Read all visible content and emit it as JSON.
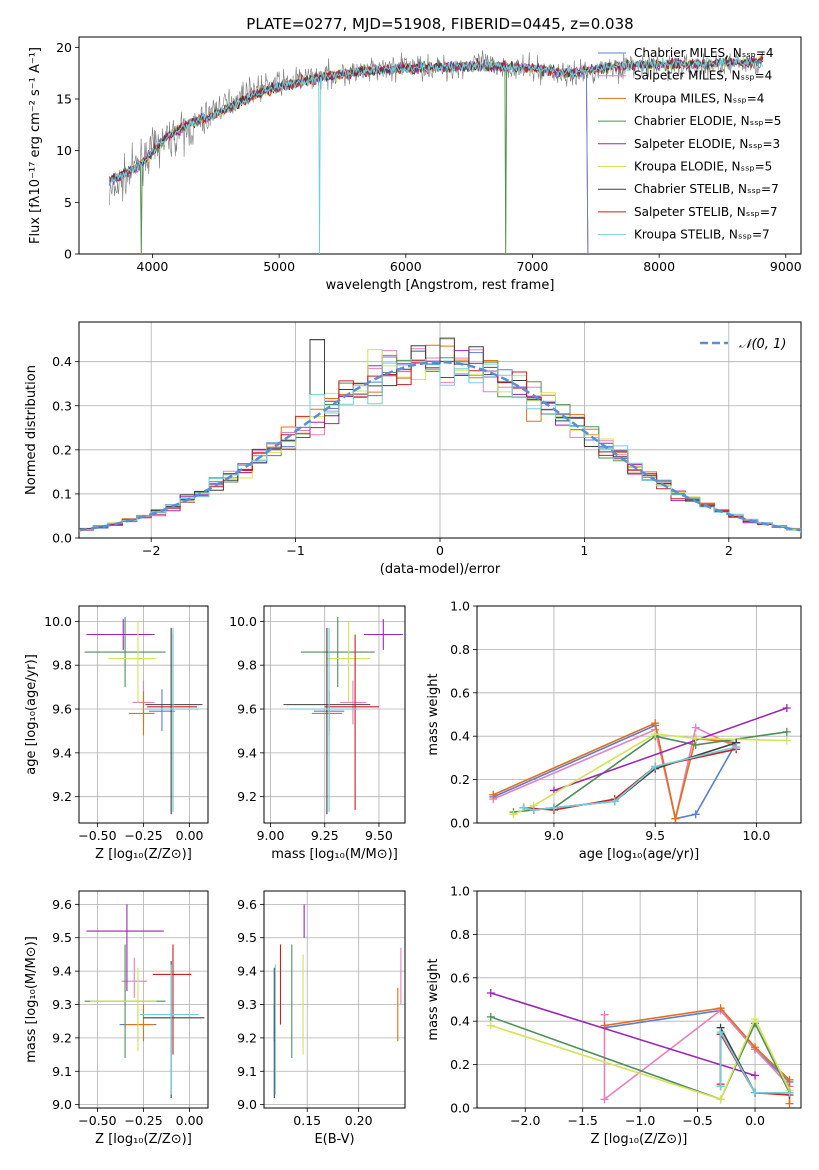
{
  "chart_data": [
    {
      "panel": "spectrum",
      "type": "line",
      "title": "PLATE=0277, MJD=51908, FIBERID=0445, z=0.038",
      "xlabel": "wavelength [Angstrom, rest frame]",
      "ylabel": "Flux [fλ10⁻¹⁷ erg cm⁻² s⁻¹ A⁻¹]",
      "xlim": [
        3420,
        9120
      ],
      "ylim": [
        0,
        21
      ],
      "xticks": [
        4000,
        5000,
        6000,
        7000,
        8000,
        9000
      ],
      "yticks": [
        0,
        5,
        10,
        15,
        20
      ],
      "legend_position": "upper-right",
      "grid": false,
      "legend": [
        {
          "label": "Chabrier MILES, Nₛₛₚ=4",
          "color": "#5b7fd4"
        },
        {
          "label": "Salpeter MILES, Nₛₛₚ=4",
          "color": "#e87fbf"
        },
        {
          "label": "Kroupa MILES, Nₛₛₚ=4",
          "color": "#e0701a"
        },
        {
          "label": "Chabrier ELODIE, Nₛₛₚ=5",
          "color": "#4f8f5a"
        },
        {
          "label": "Salpeter ELODIE, Nₛₛₚ=3",
          "color": "#9b26b6"
        },
        {
          "label": "Kroupa ELODIE, Nₛₛₚ=5",
          "color": "#d4e35a"
        },
        {
          "label": "Chabrier STELIB, Nₛₛₚ=7",
          "color": "#404040"
        },
        {
          "label": "Salpeter STELIB, Nₛₛₚ=7",
          "color": "#cc1f1f"
        },
        {
          "label": "Kroupa STELIB, Nₛₛₚ=7",
          "color": "#6fd0dd"
        }
      ],
      "continuum": {
        "x": [
          3650,
          3900,
          4100,
          4300,
          4500,
          4800,
          5000,
          5300,
          5600,
          6000,
          6300,
          6600,
          7000,
          7300,
          7450,
          7600,
          7800,
          8200,
          8600,
          8800
        ],
        "y": [
          7.0,
          8.6,
          11.2,
          12.7,
          13.5,
          15.4,
          16.2,
          17.0,
          17.6,
          18.0,
          18.1,
          18.2,
          18.0,
          17.5,
          17.8,
          18.1,
          18.3,
          18.4,
          18.5,
          18.7
        ]
      },
      "observed_spectrum": {
        "x": [
          3650,
          3900,
          4100,
          4300,
          4500,
          4800,
          5000,
          5300,
          5600,
          6000,
          6300,
          6600,
          7000,
          7300,
          7450,
          7600,
          7800,
          8200,
          8600,
          8800
        ],
        "y": [
          5.5,
          9.0,
          11.0,
          12.0,
          14.0,
          16.0,
          16.5,
          17.2,
          17.5,
          18.2,
          18.0,
          18.4,
          17.8,
          17.3,
          17.7,
          18.0,
          18.2,
          18.1,
          18.4,
          18.5
        ]
      }
    },
    {
      "panel": "residuals",
      "type": "histogram",
      "xlabel": "(data-model)/error",
      "ylabel": "Normed distribution",
      "xlim": [
        -2.5,
        2.5
      ],
      "ylim": [
        0,
        0.49
      ],
      "xticks": [
        -2,
        -1,
        0,
        1,
        2
      ],
      "yticks": [
        0.0,
        0.1,
        0.2,
        0.3,
        0.4
      ],
      "grid": true,
      "legend_position": "upper-right",
      "normal_curve_label": "𝒩(0, 1)",
      "normal_curve_color": "#5b8fd4"
    },
    {
      "panel": "age-vs-Z",
      "type": "scatter",
      "xlabel": "Z [log₁₀(Z/Z⊙)]",
      "ylabel": "age  [log₁₀(age/yr)]",
      "xlim": [
        -0.6,
        0.1
      ],
      "ylim": [
        9.08,
        10.07
      ],
      "xticks": [
        -0.5,
        -0.25,
        0.0
      ],
      "xtick_labels": [
        "−0.50",
        "−0.25",
        "0.00"
      ],
      "yticks": [
        9.2,
        9.4,
        9.6,
        9.8,
        10.0
      ],
      "grid": true,
      "points": [
        {
          "series": "Chabrier MILES",
          "x": -0.15,
          "y": 9.59,
          "xerr": [
            0.07,
            0.07
          ],
          "yerr": [
            0.09,
            0.1
          ]
        },
        {
          "series": "Salpeter MILES",
          "x": -0.25,
          "y": 9.63,
          "xerr": [
            0.06,
            0.06
          ],
          "yerr": [
            0.1,
            0.1
          ]
        },
        {
          "series": "Kroupa MILES",
          "x": -0.25,
          "y": 9.58,
          "xerr": [
            0.08,
            0.06
          ],
          "yerr": [
            0.1,
            0.1
          ]
        },
        {
          "series": "Chabrier ELODIE",
          "x": -0.35,
          "y": 9.86,
          "xerr": [
            0.22,
            0.22
          ],
          "yerr": [
            0.16,
            0.16
          ]
        },
        {
          "series": "Salpeter ELODIE",
          "x": -0.36,
          "y": 9.94,
          "xerr": [
            0.2,
            0.17
          ],
          "yerr": [
            0.07,
            0.07
          ]
        },
        {
          "series": "Kroupa ELODIE",
          "x": -0.28,
          "y": 9.83,
          "xerr": [
            0.16,
            0.1
          ],
          "yerr": [
            0.2,
            0.17
          ]
        },
        {
          "series": "Chabrier STELIB",
          "x": -0.1,
          "y": 9.62,
          "xerr": [
            0.14,
            0.17
          ],
          "yerr": [
            0.5,
            0.35
          ]
        },
        {
          "series": "Salpeter STELIB",
          "x": -0.09,
          "y": 9.61,
          "xerr": [
            0.14,
            0.13
          ],
          "yerr": [
            0.47,
            0.33
          ]
        },
        {
          "series": "Kroupa STELIB",
          "x": -0.09,
          "y": 9.6,
          "xerr": [
            0.15,
            0.14
          ],
          "yerr": [
            0.47,
            0.37
          ]
        }
      ]
    },
    {
      "panel": "age-vs-mass",
      "type": "scatter",
      "xlabel": "mass [log₁₀(M/M⊙)]",
      "xlim": [
        8.97,
        9.62
      ],
      "ylim": [
        9.08,
        10.07
      ],
      "xticks": [
        9.0,
        9.25,
        9.5
      ],
      "xtick_labels": [
        "9.00",
        "9.25",
        "9.50"
      ],
      "yticks": [
        9.2,
        9.4,
        9.6,
        9.8,
        10.0
      ],
      "grid": true,
      "points": [
        {
          "series": "Chabrier MILES",
          "x": 9.27,
          "y": 9.59,
          "xerr": [
            0.07,
            0.07
          ],
          "yerr": [
            0.09,
            0.1
          ]
        },
        {
          "series": "Salpeter MILES",
          "x": 9.38,
          "y": 9.63,
          "xerr": [
            0.06,
            0.06
          ],
          "yerr": [
            0.1,
            0.1
          ]
        },
        {
          "series": "Kroupa MILES",
          "x": 9.27,
          "y": 9.58,
          "xerr": [
            0.08,
            0.06
          ],
          "yerr": [
            0.1,
            0.1
          ]
        },
        {
          "series": "Chabrier ELODIE",
          "x": 9.31,
          "y": 9.86,
          "xerr": [
            0.17,
            0.17
          ],
          "yerr": [
            0.16,
            0.16
          ]
        },
        {
          "series": "Salpeter ELODIE",
          "x": 9.52,
          "y": 9.94,
          "xerr": [
            0.09,
            0.09
          ],
          "yerr": [
            0.07,
            0.07
          ]
        },
        {
          "series": "Kroupa ELODIE",
          "x": 9.36,
          "y": 9.83,
          "xerr": [
            0.1,
            0.1
          ],
          "yerr": [
            0.2,
            0.17
          ]
        },
        {
          "series": "Chabrier STELIB",
          "x": 9.26,
          "y": 9.62,
          "xerr": [
            0.2,
            0.2
          ],
          "yerr": [
            0.5,
            0.35
          ]
        },
        {
          "series": "Salpeter STELIB",
          "x": 9.39,
          "y": 9.61,
          "xerr": [
            0.14,
            0.11
          ],
          "yerr": [
            0.47,
            0.33
          ]
        },
        {
          "series": "Kroupa STELIB",
          "x": 9.27,
          "y": 9.6,
          "xerr": [
            0.18,
            0.14
          ],
          "yerr": [
            0.47,
            0.37
          ]
        }
      ]
    },
    {
      "panel": "weight-vs-age",
      "type": "line",
      "xlabel": "age  [log₁₀(age/yr)]",
      "ylabel": "mass weight",
      "xlim": [
        8.62,
        10.22
      ],
      "ylim": [
        0,
        1.0
      ],
      "xticks": [
        9.0,
        9.5,
        10.0
      ],
      "yticks": [
        0.0,
        0.2,
        0.4,
        0.6,
        0.8,
        1.0
      ],
      "grid": true,
      "series": [
        {
          "name": "Chabrier MILES",
          "x": [
            8.7,
            9.5,
            9.6,
            9.7,
            9.9
          ],
          "y": [
            0.12,
            0.45,
            0.02,
            0.04,
            0.37
          ]
        },
        {
          "name": "Salpeter MILES",
          "x": [
            8.7,
            9.5,
            9.6,
            9.7,
            9.9
          ],
          "y": [
            0.11,
            0.43,
            0.02,
            0.44,
            0.35
          ]
        },
        {
          "name": "Kroupa MILES",
          "x": [
            8.7,
            9.5,
            9.6,
            9.7,
            9.9
          ],
          "y": [
            0.13,
            0.46,
            0.02,
            0.39,
            0.37
          ]
        },
        {
          "name": "Chabrier ELODIE",
          "x": [
            8.8,
            9.0,
            9.5,
            9.7,
            10.15
          ],
          "y": [
            0.05,
            0.07,
            0.4,
            0.36,
            0.42
          ]
        },
        {
          "name": "Salpeter ELODIE",
          "x": [
            9.0,
            10.15
          ],
          "y": [
            0.15,
            0.53
          ]
        },
        {
          "name": "Kroupa ELODIE",
          "x": [
            8.8,
            8.9,
            9.5,
            9.7,
            10.15
          ],
          "y": [
            0.04,
            0.08,
            0.41,
            0.39,
            0.38
          ]
        },
        {
          "name": "Chabrier STELIB",
          "x": [
            8.85,
            8.9,
            9.0,
            9.3,
            9.5,
            9.9
          ],
          "y": [
            0.07,
            0.06,
            0.07,
            0.1,
            0.25,
            0.37
          ]
        },
        {
          "name": "Salpeter STELIB",
          "x": [
            8.85,
            9.0,
            9.3,
            9.5,
            9.9
          ],
          "y": [
            0.07,
            0.06,
            0.11,
            0.26,
            0.34
          ]
        },
        {
          "name": "Kroupa STELIB",
          "x": [
            8.85,
            8.9,
            9.0,
            9.3,
            9.5,
            9.9
          ],
          "y": [
            0.07,
            0.06,
            0.07,
            0.1,
            0.26,
            0.35
          ]
        }
      ]
    },
    {
      "panel": "mass-vs-Z",
      "type": "scatter",
      "xlabel": "Z [log₁₀(Z/Z⊙)]",
      "ylabel": "mass [log₁₀(M/M⊙)]",
      "xlim": [
        -0.6,
        0.1
      ],
      "ylim": [
        8.99,
        9.64
      ],
      "xticks": [
        -0.5,
        -0.25,
        0.0
      ],
      "xtick_labels": [
        "−0.50",
        "−0.25",
        "0.00"
      ],
      "yticks": [
        9.0,
        9.1,
        9.2,
        9.3,
        9.4,
        9.5,
        9.6
      ],
      "grid": true,
      "points": [
        {
          "series": "Chabrier MILES",
          "x": -0.28,
          "y": 9.24,
          "xerr": [
            0.1,
            0.1
          ],
          "yerr": [
            0.05,
            0.06
          ]
        },
        {
          "series": "Salpeter MILES",
          "x": -0.3,
          "y": 9.37,
          "xerr": [
            0.07,
            0.07
          ],
          "yerr": [
            0.05,
            0.07
          ]
        },
        {
          "series": "Kroupa MILES",
          "x": -0.25,
          "y": 9.24,
          "xerr": [
            0.1,
            0.06
          ],
          "yerr": [
            0.05,
            0.06
          ]
        },
        {
          "series": "Chabrier ELODIE",
          "x": -0.35,
          "y": 9.31,
          "xerr": [
            0.22,
            0.22
          ],
          "yerr": [
            0.17,
            0.17
          ]
        },
        {
          "series": "Salpeter ELODIE",
          "x": -0.34,
          "y": 9.52,
          "xerr": [
            0.22,
            0.2
          ],
          "yerr": [
            0.18,
            0.08
          ]
        },
        {
          "series": "Kroupa ELODIE",
          "x": -0.28,
          "y": 9.31,
          "xerr": [
            0.26,
            0.1
          ],
          "yerr": [
            0.15,
            0.1
          ]
        },
        {
          "series": "Chabrier STELIB",
          "x": -0.1,
          "y": 9.26,
          "xerr": [
            0.15,
            0.18
          ],
          "yerr": [
            0.24,
            0.17
          ]
        },
        {
          "series": "Salpeter STELIB",
          "x": -0.09,
          "y": 9.39,
          "xerr": [
            0.11,
            0.1
          ],
          "yerr": [
            0.24,
            0.09
          ]
        },
        {
          "series": "Kroupa STELIB",
          "x": -0.1,
          "y": 9.27,
          "xerr": [
            0.17,
            0.15
          ],
          "yerr": [
            0.24,
            0.15
          ]
        }
      ]
    },
    {
      "panel": "mass-vs-EBV",
      "type": "scatter",
      "xlabel": "E(B-V)",
      "xlim": [
        0.108,
        0.245
      ],
      "ylim": [
        8.99,
        9.64
      ],
      "xticks": [
        0.15,
        0.2
      ],
      "xtick_labels": [
        "0.15",
        "0.20"
      ],
      "yticks": [
        9.0,
        9.1,
        9.2,
        9.3,
        9.4,
        9.5,
        9.6
      ],
      "grid": true,
      "points": [
        {
          "series": "Chabrier MILES",
          "x": 0.118,
          "y": 9.24,
          "yerr": [
            0.05,
            0.06
          ]
        },
        {
          "series": "Salpeter MILES",
          "x": 0.241,
          "y": 9.37,
          "yerr": [
            0.07,
            0.1
          ]
        },
        {
          "series": "Kroupa MILES",
          "x": 0.238,
          "y": 9.27,
          "yerr": [
            0.08,
            0.08
          ]
        },
        {
          "series": "Chabrier ELODIE",
          "x": 0.135,
          "y": 9.31,
          "yerr": [
            0.17,
            0.17
          ]
        },
        {
          "series": "Salpeter ELODIE",
          "x": 0.147,
          "y": 9.52,
          "yerr": [
            0.02,
            0.08
          ]
        },
        {
          "series": "Kroupa ELODIE",
          "x": 0.146,
          "y": 9.31,
          "yerr": [
            0.16,
            0.14
          ]
        },
        {
          "series": "Chabrier STELIB",
          "x": 0.118,
          "y": 9.26,
          "yerr": [
            0.24,
            0.15
          ]
        },
        {
          "series": "Salpeter STELIB",
          "x": 0.124,
          "y": 9.39,
          "yerr": [
            0.15,
            0.09
          ]
        },
        {
          "series": "Kroupa STELIB",
          "x": 0.119,
          "y": 9.26,
          "yerr": [
            0.23,
            0.16
          ]
        }
      ]
    },
    {
      "panel": "weight-vs-Z",
      "type": "line",
      "xlabel": "Z [log₁₀(Z/Z⊙)]",
      "ylabel": "mass weight",
      "xlim": [
        -2.42,
        0.4
      ],
      "ylim": [
        0,
        1.0
      ],
      "xticks": [
        -2.0,
        -1.5,
        -1.0,
        -0.5,
        0.0
      ],
      "xtick_labels": [
        "−2.0",
        "−1.5",
        "−1.0",
        "−0.5",
        "0.0"
      ],
      "yticks": [
        0.0,
        0.2,
        0.4,
        0.6,
        0.8,
        1.0
      ],
      "grid": true,
      "series": [
        {
          "name": "Chabrier MILES",
          "x": [
            -1.31,
            -0.3,
            0.0,
            0.3
          ],
          "y": [
            0.37,
            0.45,
            0.27,
            0.12
          ]
        },
        {
          "name": "Salpeter MILES",
          "x": [
            -1.31,
            -1.31,
            -0.3,
            0.0,
            0.3
          ],
          "y": [
            0.43,
            0.04,
            0.45,
            0.27,
            0.1
          ]
        },
        {
          "name": "Kroupa MILES",
          "x": [
            -1.31,
            -0.3,
            0.0,
            0.3,
            0.3
          ],
          "y": [
            0.38,
            0.46,
            0.28,
            0.13,
            0.02
          ]
        },
        {
          "name": "Chabrier ELODIE",
          "x": [
            -2.3,
            -0.3,
            0.0,
            0.3
          ],
          "y": [
            0.42,
            0.04,
            0.39,
            0.07
          ]
        },
        {
          "name": "Salpeter ELODIE",
          "x": [
            -2.3,
            0.0
          ],
          "y": [
            0.53,
            0.15
          ]
        },
        {
          "name": "Kroupa ELODIE",
          "x": [
            -2.3,
            -0.3,
            0.0,
            0.3
          ],
          "y": [
            0.38,
            0.04,
            0.41,
            0.08
          ]
        },
        {
          "name": "Chabrier STELIB",
          "x": [
            -0.3,
            -0.3,
            0.0,
            0.3
          ],
          "y": [
            0.1,
            0.37,
            0.07,
            0.07
          ]
        },
        {
          "name": "Salpeter STELIB",
          "x": [
            -0.3,
            -0.3,
            0.0,
            0.3
          ],
          "y": [
            0.11,
            0.34,
            0.07,
            0.06
          ]
        },
        {
          "name": "Kroupa STELIB",
          "x": [
            -0.3,
            -0.3,
            0.0,
            0.3
          ],
          "y": [
            0.1,
            0.35,
            0.07,
            0.07
          ]
        }
      ]
    }
  ]
}
